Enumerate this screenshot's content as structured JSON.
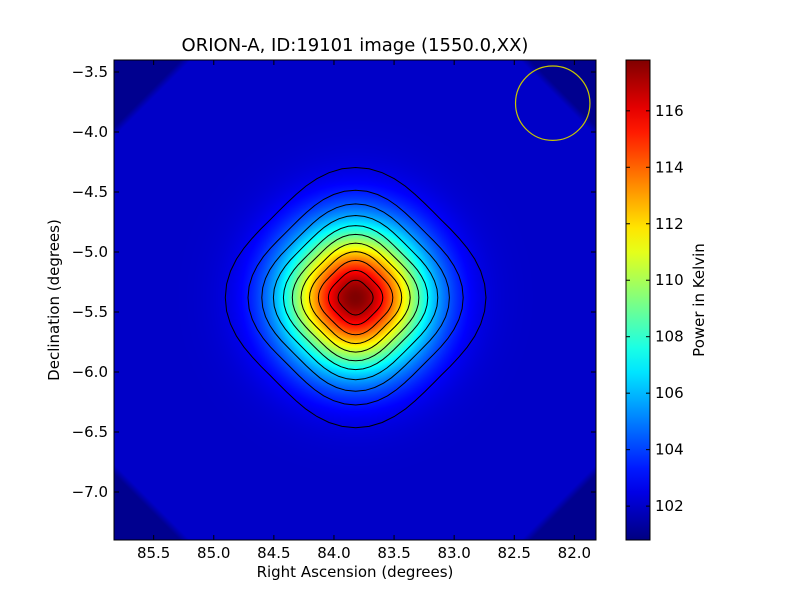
{
  "chart_data": {
    "type": "heatmap",
    "title": "ORION-A, ID:19101 image (1550.0,XX)",
    "xlabel": "Right Ascension (degrees)",
    "ylabel": "Declination (degrees)",
    "xlim": [
      85.83,
      81.82
    ],
    "ylim": [
      -7.4,
      -3.4
    ],
    "xticks": [
      85.5,
      85.0,
      84.5,
      84.0,
      83.5,
      83.0,
      82.5,
      82.0
    ],
    "xtick_labels": [
      "85.5",
      "85.0",
      "84.5",
      "84.0",
      "83.5",
      "83.0",
      "82.5",
      "82.0"
    ],
    "yticks": [
      -3.5,
      -4.0,
      -4.5,
      -5.0,
      -5.5,
      -6.0,
      -6.5,
      -7.0
    ],
    "ytick_labels": [
      "−3.5",
      "−4.0",
      "−4.5",
      "−5.0",
      "−5.5",
      "−6.0",
      "−6.5",
      "−7.0"
    ],
    "colormap": "jet",
    "colorbar": {
      "label": "Power in Kelvin",
      "range": [
        100.8,
        117.8
      ],
      "ticks": [
        102,
        104,
        106,
        108,
        110,
        112,
        114,
        116
      ],
      "tick_labels": [
        "102",
        "104",
        "106",
        "108",
        "110",
        "112",
        "114",
        "116"
      ]
    },
    "source": {
      "ra": 83.82,
      "dec": -5.38,
      "peak_kelvin": 117.8,
      "background_kelvin": 102.0,
      "sigma_ra_deg": 0.4,
      "sigma_dec_deg": 0.4
    },
    "contour_levels": [
      102.6,
      103.7,
      104.9,
      106.3,
      107.8,
      109.3,
      110.9,
      112.5,
      114.1,
      115.7,
      116.9
    ],
    "contour_color": "#000000",
    "beam_marker": {
      "ra": 82.18,
      "dec": -3.76,
      "radius_deg": 0.31,
      "color": "#c8c800"
    },
    "blank_corners": true,
    "grid": false
  }
}
